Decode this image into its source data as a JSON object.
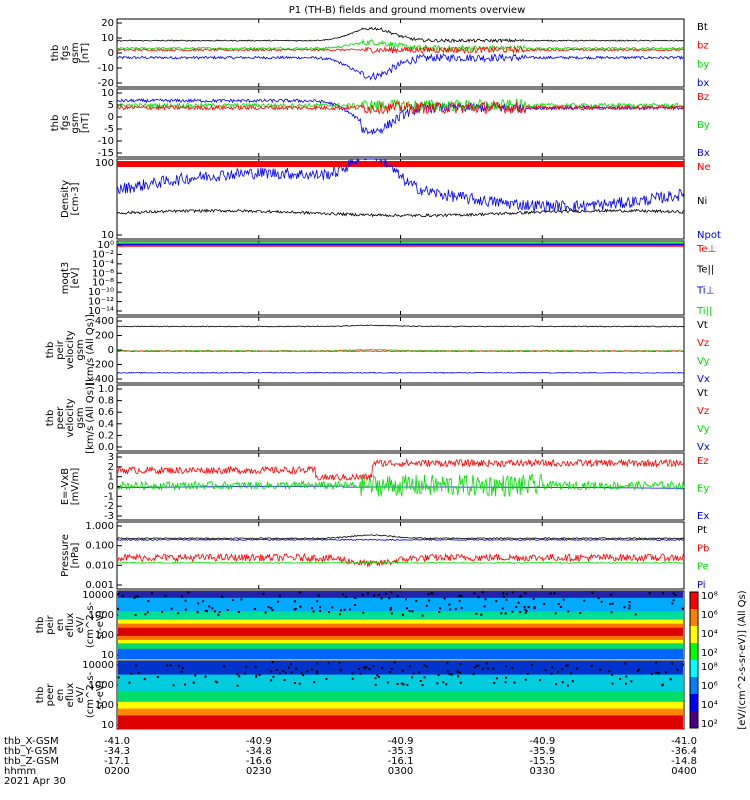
{
  "title": "P1 (TH-B) fields and ground moments overview",
  "colors": {
    "black": "#000000",
    "red": "#ff0000",
    "green": "#00dd00",
    "blue": "#0000ff"
  },
  "panels": [
    {
      "id": "fgs-gsm",
      "ylabel": [
        "thb",
        "fgs",
        "gsm",
        "[nT]"
      ],
      "yticks": [
        "20",
        "10",
        "0",
        "-10",
        "-20"
      ],
      "yrange": [
        -20,
        22
      ],
      "legend": [
        {
          "t": "Bt",
          "c": "black"
        },
        {
          "t": "bz",
          "c": "red"
        },
        {
          "t": "by",
          "c": "green"
        },
        {
          "t": "bx",
          "c": "blue"
        }
      ]
    },
    {
      "id": "fgs-gsm-2",
      "ylabel": [
        "thb",
        "fgs",
        "gsm",
        "[nT]"
      ],
      "yticks": [
        "10",
        "5",
        "0",
        "-5",
        "-10",
        "-15"
      ],
      "yrange": [
        -17,
        12
      ],
      "legend": [
        {
          "t": "Bz",
          "c": "red"
        },
        {
          "t": "By",
          "c": "green"
        },
        {
          "t": "Bx",
          "c": "blue"
        }
      ]
    },
    {
      "id": "density",
      "ylabel": [
        "Density",
        "[cm-3]"
      ],
      "yticks": [
        "100",
        "10"
      ],
      "log": true,
      "legend": [
        {
          "t": "Ne",
          "c": "red"
        },
        {
          "t": "Ni",
          "c": "black"
        },
        {
          "t": "Npot",
          "c": "blue"
        }
      ]
    },
    {
      "id": "temperature",
      "ylabel": [
        "moqt3",
        "[eV]"
      ],
      "yticks": [
        "10⁰",
        "10⁻²",
        "10⁻⁴",
        "10⁻⁶",
        "10⁻⁸",
        "10⁻¹⁰",
        "10⁻¹²",
        "10⁻¹⁴"
      ],
      "legend": [
        {
          "t": "Te⊥",
          "c": "red"
        },
        {
          "t": "Te||",
          "c": "black"
        },
        {
          "t": "Ti⊥",
          "c": "blue"
        },
        {
          "t": "Ti||",
          "c": "green"
        }
      ]
    },
    {
      "id": "peir-velocity",
      "ylabel": [
        "thb",
        "peir",
        "velocity",
        "gsm",
        "[km/s (All Qs)]"
      ],
      "yticks": [
        "400",
        "200",
        "0",
        "-200",
        "-400"
      ],
      "yrange": [
        -420,
        420
      ],
      "legend": [
        {
          "t": "Vt",
          "c": "black"
        },
        {
          "t": "Vz",
          "c": "red"
        },
        {
          "t": "Vy",
          "c": "green"
        },
        {
          "t": "Vx",
          "c": "blue"
        }
      ]
    },
    {
      "id": "peer-velocity",
      "ylabel": [
        "thb",
        "peer",
        "velocity",
        "gsm",
        "[km/s (All Qs)]"
      ],
      "yticks": [
        "1.0",
        "0.8",
        "0.6",
        "0.4",
        "0.2",
        "0.0"
      ],
      "legend": [
        {
          "t": "Vt",
          "c": "black"
        },
        {
          "t": "Vz",
          "c": "red"
        },
        {
          "t": "Vy",
          "c": "green"
        },
        {
          "t": "Vx",
          "c": "blue"
        }
      ]
    },
    {
      "id": "efield",
      "ylabel": [
        "E=-VxB",
        "[mV/m]"
      ],
      "yticks": [
        "3",
        "2",
        "1",
        "0",
        "-1",
        "-2",
        "-3"
      ],
      "yrange": [
        -3,
        3.3
      ],
      "legend": [
        {
          "t": "Ez",
          "c": "red"
        },
        {
          "t": "Ey",
          "c": "green"
        },
        {
          "t": "Ex",
          "c": "blue"
        }
      ]
    },
    {
      "id": "pressure",
      "ylabel": [
        "Pressure",
        "[nPa]"
      ],
      "yticks": [
        "1.000",
        "0.100",
        "0.010",
        "0.001"
      ],
      "log": true,
      "legend": [
        {
          "t": "Pt",
          "c": "black"
        },
        {
          "t": "Pb",
          "c": "red"
        },
        {
          "t": "Pe",
          "c": "green"
        },
        {
          "t": "Pi",
          "c": "blue"
        }
      ]
    },
    {
      "id": "peir-spec",
      "ylabel": [
        "thb",
        "peir",
        "en",
        "eflux",
        "eV/",
        "(cm^2-s-",
        "sr-eV)"
      ],
      "yticks": [
        "10000",
        "1000",
        "100",
        "10"
      ]
    },
    {
      "id": "peer-spec",
      "ylabel": [
        "thb",
        "peer",
        "en",
        "eflux",
        "eV/",
        "(cm^2-s-",
        "sr-eV)"
      ],
      "yticks": [
        "10000",
        "1000",
        "100",
        "10"
      ]
    }
  ],
  "colorbar": {
    "ticks_top": [
      "10⁸",
      "10⁶",
      "10⁴",
      "10²"
    ],
    "ticks_bottom": [
      "10⁸",
      "10⁶",
      "10⁴",
      "10²"
    ],
    "label": "[eV/(cm^2-s-sr-eV)] (All Qs)"
  },
  "xaxis": {
    "rows": [
      {
        "name": "thb_X-GSM",
        "vals": [
          "-41.0",
          "-40.9",
          "-40.9",
          "-40.9",
          "-41.0"
        ]
      },
      {
        "name": "thb_Y-GSM",
        "vals": [
          "-34.3",
          "-34.8",
          "-35.3",
          "-35.9",
          "-36.4"
        ]
      },
      {
        "name": "thb_Z-GSM",
        "vals": [
          "-17.1",
          "-16.6",
          "-16.1",
          "-15.5",
          "-14.8"
        ]
      },
      {
        "name": "hhmm",
        "vals": [
          "0200",
          "0230",
          "0300",
          "0330",
          "0400"
        ]
      }
    ],
    "date": "2021 Apr 30"
  }
}
